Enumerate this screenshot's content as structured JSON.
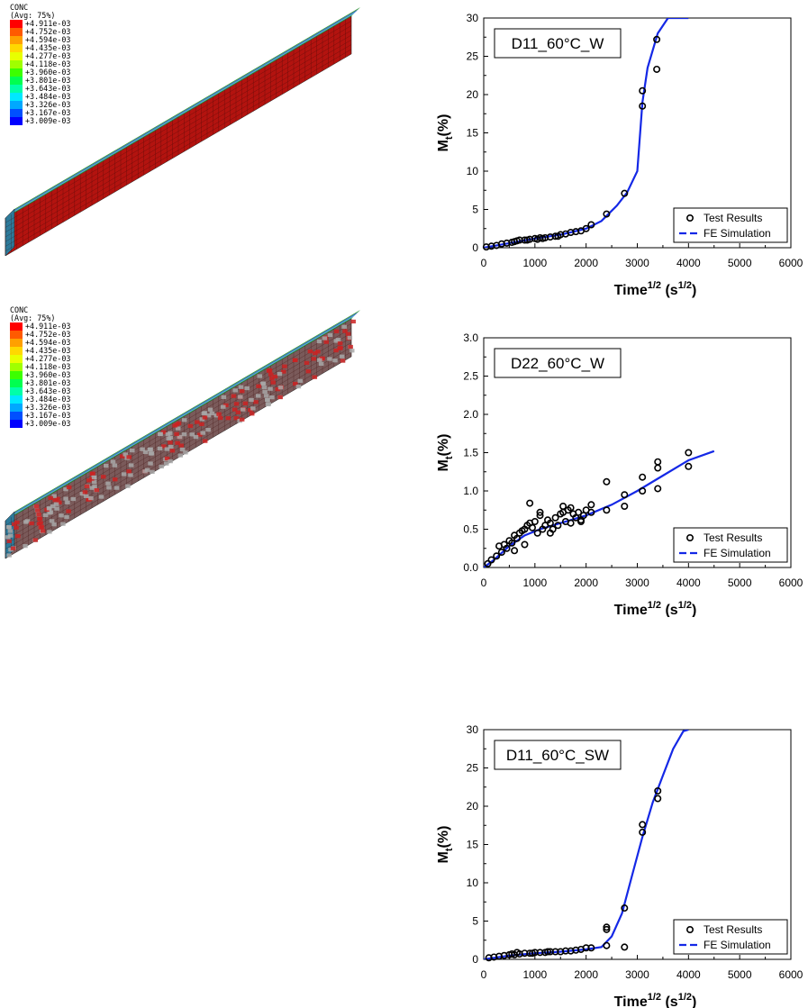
{
  "contour_panels": [
    {
      "title": "CONC",
      "subtitle": "(Avg: 75%)",
      "legend_values": [
        "+4.911e-03",
        "+4.752e-03",
        "+4.594e-03",
        "+4.435e-03",
        "+4.277e-03",
        "+4.118e-03",
        "+3.960e-03",
        "+3.801e-03",
        "+3.643e-03",
        "+3.484e-03",
        "+3.326e-03",
        "+3.167e-03",
        "+3.009e-03"
      ],
      "legend_colors": [
        "#ff0000",
        "#ff5a00",
        "#ffa000",
        "#ffd800",
        "#e8ff00",
        "#a0ff00",
        "#3cff00",
        "#00ff50",
        "#00ffa8",
        "#00e8ff",
        "#00a8ff",
        "#0050ff",
        "#0000ff"
      ],
      "beam_color": "#b3130f"
    },
    {
      "title": "CONC",
      "subtitle": "(Avg: 75%)",
      "legend_values": [
        "+4.911e-03",
        "+4.752e-03",
        "+4.594e-03",
        "+4.435e-03",
        "+4.277e-03",
        "+4.118e-03",
        "+3.960e-03",
        "+3.801e-03",
        "+3.643e-03",
        "+3.484e-03",
        "+3.326e-03",
        "+3.167e-03",
        "+3.009e-03"
      ],
      "legend_colors": [
        "#ff0000",
        "#ff5a00",
        "#ffa000",
        "#ffd800",
        "#e8ff00",
        "#a0ff00",
        "#3cff00",
        "#00ff50",
        "#00ffa8",
        "#00e8ff",
        "#00a8ff",
        "#0050ff",
        "#0000ff"
      ],
      "beam_color": "#7a5a5a"
    }
  ],
  "chart_data": [
    {
      "type": "line",
      "title": "D11_60°C_W",
      "xlabel_base": "Time",
      "xlabel_sup": "1/2",
      "xlabel_unit_open": "(s",
      "xlabel_unit_sup": "1/2",
      "xlabel_unit_close": ")",
      "ylabel_base": "M",
      "ylabel_sub": "t",
      "ylabel_rest": "(%)",
      "xlim": [
        0,
        6000
      ],
      "ylim": [
        0,
        30
      ],
      "xticks": [
        "0",
        "1000",
        "2000",
        "3000",
        "4000",
        "5000",
        "6000"
      ],
      "yticks": [
        "0",
        "5",
        "10",
        "15",
        "20",
        "25",
        "30"
      ],
      "legend": [
        "Test Results",
        "FE Simulation"
      ],
      "colors": {
        "simulation": "#1428e6",
        "test": "#000000"
      },
      "series": [
        {
          "name": "Test Results",
          "kind": "scatter",
          "x": [
            50,
            150,
            250,
            350,
            450,
            550,
            650,
            700,
            800,
            900,
            1000,
            1050,
            1100,
            1200,
            1300,
            1400,
            1500,
            1600,
            1700,
            1800,
            1900,
            2000,
            2100,
            2400,
            2750,
            3100,
            3100,
            3380,
            3380,
            600,
            850,
            1150,
            1450
          ],
          "y": [
            0.1,
            0.2,
            0.3,
            0.5,
            0.6,
            0.7,
            0.9,
            1.0,
            1.0,
            1.1,
            1.2,
            1.1,
            1.3,
            1.3,
            1.4,
            1.5,
            1.7,
            1.8,
            2.0,
            2.1,
            2.2,
            2.5,
            3.0,
            4.4,
            7.1,
            18.5,
            20.5,
            23.3,
            27.2,
            0.8,
            1.0,
            1.2,
            1.5
          ]
        },
        {
          "name": "FE Simulation",
          "kind": "line",
          "x": [
            0,
            500,
            1000,
            1500,
            2000,
            2300,
            2600,
            2800,
            3000,
            3100,
            3200,
            3400,
            3600,
            4000
          ],
          "y": [
            0,
            0.6,
            1.2,
            1.7,
            2.5,
            3.5,
            5.5,
            7.2,
            10.0,
            19.0,
            23.5,
            28.0,
            30.0,
            30.0
          ]
        }
      ]
    },
    {
      "type": "line",
      "title": "D22_60°C_W",
      "xlabel_base": "Time",
      "xlabel_sup": "1/2",
      "xlabel_unit_open": "(s",
      "xlabel_unit_sup": "1/2",
      "xlabel_unit_close": ")",
      "ylabel_base": "M",
      "ylabel_sub": "t",
      "ylabel_rest": "(%)",
      "xlim": [
        0,
        6000
      ],
      "ylim": [
        0,
        3.0
      ],
      "xticks": [
        "0",
        "1000",
        "2000",
        "3000",
        "4000",
        "5000",
        "6000"
      ],
      "yticks": [
        "0.0",
        "0.5",
        "1.0",
        "1.5",
        "2.0",
        "2.5",
        "3.0"
      ],
      "legend": [
        "Test Results",
        "FE Simulation"
      ],
      "colors": {
        "simulation": "#1428e6",
        "test": "#000000"
      },
      "series": [
        {
          "name": "Test Results",
          "kind": "scatter",
          "x": [
            80,
            150,
            250,
            300,
            350,
            400,
            450,
            500,
            550,
            600,
            650,
            700,
            750,
            800,
            850,
            900,
            950,
            1000,
            1050,
            1100,
            1150,
            1200,
            1250,
            1300,
            1350,
            1400,
            1450,
            1500,
            1550,
            1600,
            1650,
            1700,
            1750,
            1800,
            1850,
            1900,
            1950,
            2000,
            2100,
            2100,
            2400,
            2400,
            2750,
            2750,
            3100,
            3100,
            3400,
            3400,
            3400,
            4000,
            4000,
            900,
            1100,
            1550,
            1700,
            600,
            800,
            1300,
            1900
          ],
          "y": [
            0.05,
            0.1,
            0.15,
            0.28,
            0.2,
            0.3,
            0.25,
            0.35,
            0.32,
            0.42,
            0.38,
            0.45,
            0.48,
            0.5,
            0.55,
            0.84,
            0.52,
            0.6,
            0.45,
            0.68,
            0.5,
            0.55,
            0.62,
            0.58,
            0.5,
            0.65,
            0.55,
            0.7,
            0.8,
            0.6,
            0.75,
            0.58,
            0.7,
            0.65,
            0.72,
            0.6,
            0.68,
            0.75,
            0.72,
            0.82,
            0.75,
            1.12,
            0.8,
            0.95,
            1.0,
            1.18,
            1.03,
            1.3,
            1.38,
            1.32,
            1.5,
            0.58,
            0.72,
            0.72,
            0.78,
            0.22,
            0.3,
            0.45,
            0.62
          ]
        },
        {
          "name": "FE Simulation",
          "kind": "line",
          "x": [
            0,
            200,
            500,
            800,
            1100,
            1500,
            2000,
            2500,
            3000,
            3500,
            4000,
            4500
          ],
          "y": [
            0,
            0.1,
            0.28,
            0.42,
            0.5,
            0.58,
            0.68,
            0.82,
            1.0,
            1.2,
            1.4,
            1.52
          ]
        }
      ]
    },
    {
      "type": "line",
      "title": "D11_60°C_SW",
      "xlabel_base": "Time",
      "xlabel_sup": "1/2",
      "xlabel_unit_open": "(s",
      "xlabel_unit_sup": "1/2",
      "xlabel_unit_close": ")",
      "ylabel_base": "M",
      "ylabel_sub": "t",
      "ylabel_rest": "(%)",
      "xlim": [
        0,
        6000
      ],
      "ylim": [
        0,
        30
      ],
      "xticks": [
        "0",
        "1000",
        "2000",
        "3000",
        "4000",
        "5000",
        "6000"
      ],
      "yticks": [
        "0",
        "5",
        "10",
        "15",
        "20",
        "25",
        "30"
      ],
      "legend": [
        "Test Results",
        "FE Simulation"
      ],
      "colors": {
        "simulation": "#1428e6",
        "test": "#000000"
      },
      "series": [
        {
          "name": "Test Results",
          "kind": "scatter",
          "x": [
            100,
            200,
            300,
            400,
            500,
            600,
            700,
            800,
            900,
            1000,
            1100,
            1200,
            1300,
            1400,
            1500,
            1600,
            1700,
            1800,
            1900,
            2000,
            2100,
            2400,
            2400,
            2400,
            2750,
            2750,
            3100,
            3100,
            3400,
            3400,
            550,
            650,
            950,
            1250
          ],
          "y": [
            0.2,
            0.3,
            0.4,
            0.5,
            0.6,
            0.6,
            0.7,
            0.8,
            0.8,
            0.9,
            0.9,
            0.9,
            1.0,
            1.0,
            1.0,
            1.1,
            1.1,
            1.2,
            1.3,
            1.5,
            1.5,
            1.8,
            3.9,
            4.2,
            1.6,
            6.7,
            16.6,
            17.6,
            21.0,
            22.0,
            0.7,
            0.9,
            0.8,
            1.0
          ]
        },
        {
          "name": "FE Simulation",
          "kind": "line",
          "x": [
            0,
            500,
            1000,
            1500,
            2000,
            2300,
            2500,
            2700,
            2900,
            3100,
            3300,
            3500,
            3700,
            3900,
            4000
          ],
          "y": [
            0,
            0.5,
            0.8,
            1.0,
            1.3,
            1.6,
            3.0,
            6.0,
            11.0,
            16.0,
            20.5,
            24.0,
            27.5,
            29.8,
            30.0
          ]
        }
      ]
    }
  ]
}
